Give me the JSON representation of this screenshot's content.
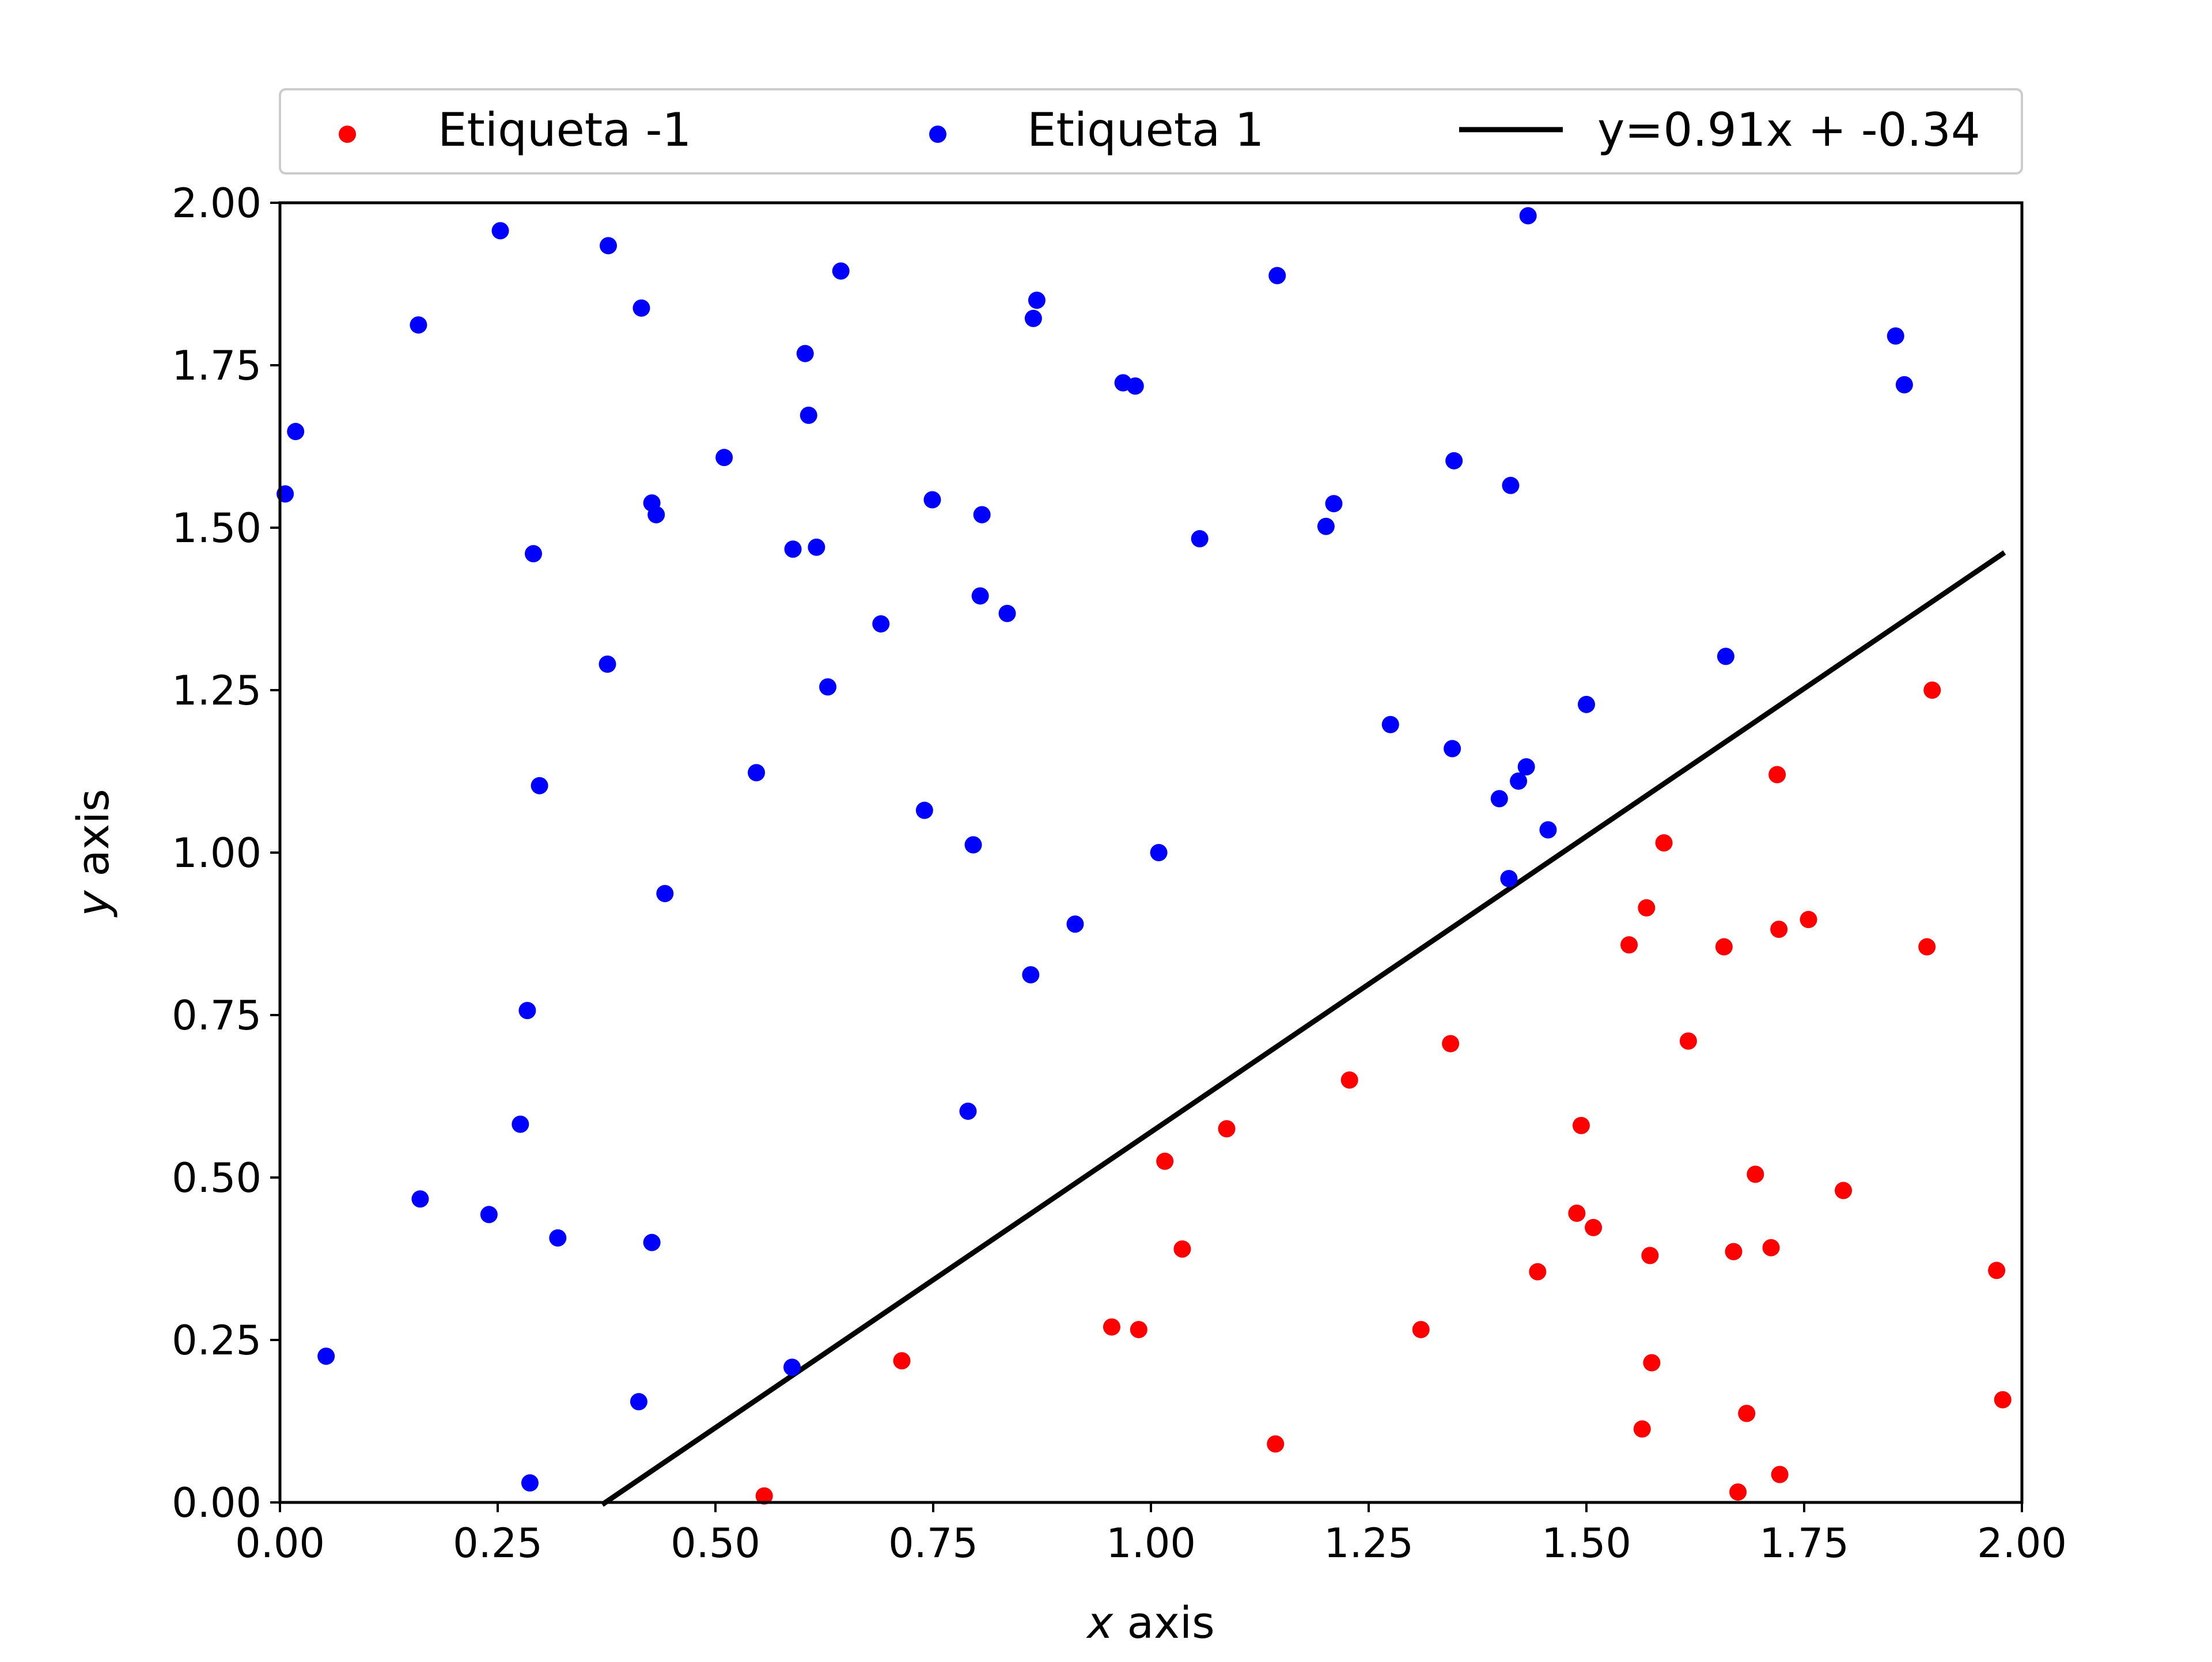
{
  "chart_data": {
    "type": "scatter",
    "title": "",
    "xlabel_var": "x",
    "xlabel_rest": " axis",
    "ylabel_var": "y",
    "ylabel_rest": " axis",
    "xlim": [
      0,
      2
    ],
    "ylim": [
      0,
      2
    ],
    "xticks": [
      "0.00",
      "0.25",
      "0.50",
      "0.75",
      "1.00",
      "1.25",
      "1.50",
      "1.75",
      "2.00"
    ],
    "yticks": [
      "0.00",
      "0.25",
      "0.50",
      "0.75",
      "1.00",
      "1.25",
      "1.50",
      "1.75",
      "2.00"
    ],
    "grid": false,
    "legend_position": "top, above plot",
    "series": [
      {
        "name": "Etiqueta -1",
        "color": "#ff0000",
        "points": [
          [
            0.556,
            0.01
          ],
          [
            0.714,
            0.218
          ],
          [
            0.955,
            0.27
          ],
          [
            0.986,
            0.266
          ],
          [
            1.016,
            0.525
          ],
          [
            1.036,
            0.39
          ],
          [
            1.087,
            0.575
          ],
          [
            1.143,
            0.09
          ],
          [
            1.228,
            0.65
          ],
          [
            1.31,
            0.266
          ],
          [
            1.344,
            0.706
          ],
          [
            1.444,
            0.355
          ],
          [
            1.489,
            0.445
          ],
          [
            1.494,
            0.58
          ],
          [
            1.508,
            0.423
          ],
          [
            1.549,
            0.858
          ],
          [
            1.564,
            0.113
          ],
          [
            1.569,
            0.915
          ],
          [
            1.573,
            0.38
          ],
          [
            1.575,
            0.215
          ],
          [
            1.589,
            1.015
          ],
          [
            1.617,
            0.71
          ],
          [
            1.658,
            0.855
          ],
          [
            1.669,
            0.386
          ],
          [
            1.674,
            0.016
          ],
          [
            1.684,
            0.137
          ],
          [
            1.694,
            0.505
          ],
          [
            1.712,
            0.392
          ],
          [
            1.719,
            1.12
          ],
          [
            1.721,
            0.882
          ],
          [
            1.722,
            0.043
          ],
          [
            1.755,
            0.897
          ],
          [
            1.795,
            0.48
          ],
          [
            1.891,
            0.855
          ],
          [
            1.897,
            1.25
          ],
          [
            1.971,
            0.357
          ],
          [
            1.978,
            0.158
          ]
        ]
      },
      {
        "name": "Etiqueta 1",
        "color": "#0000ff",
        "points": [
          [
            0.006,
            1.552
          ],
          [
            0.018,
            1.648
          ],
          [
            0.053,
            0.225
          ],
          [
            0.159,
            1.812
          ],
          [
            0.161,
            0.467
          ],
          [
            0.24,
            0.443
          ],
          [
            0.253,
            1.957
          ],
          [
            0.276,
            0.582
          ],
          [
            0.284,
            0.757
          ],
          [
            0.287,
            0.03
          ],
          [
            0.291,
            1.46
          ],
          [
            0.298,
            1.103
          ],
          [
            0.319,
            0.407
          ],
          [
            0.376,
            1.29
          ],
          [
            0.377,
            1.934
          ],
          [
            0.412,
            0.155
          ],
          [
            0.415,
            1.838
          ],
          [
            0.427,
            1.538
          ],
          [
            0.427,
            0.4
          ],
          [
            0.432,
            1.52
          ],
          [
            0.442,
            0.937
          ],
          [
            0.51,
            1.608
          ],
          [
            0.547,
            1.123
          ],
          [
            0.588,
            0.208
          ],
          [
            0.589,
            1.467
          ],
          [
            0.603,
            1.768
          ],
          [
            0.607,
            1.673
          ],
          [
            0.616,
            1.47
          ],
          [
            0.629,
            1.255
          ],
          [
            0.644,
            1.895
          ],
          [
            0.69,
            1.352
          ],
          [
            0.74,
            1.065
          ],
          [
            0.749,
            1.543
          ],
          [
            0.79,
            0.602
          ],
          [
            0.796,
            1.012
          ],
          [
            0.804,
            1.395
          ],
          [
            0.806,
            1.52
          ],
          [
            0.835,
            1.368
          ],
          [
            0.862,
            0.812
          ],
          [
            0.865,
            1.822
          ],
          [
            0.869,
            1.85
          ],
          [
            0.913,
            0.89
          ],
          [
            0.968,
            1.723
          ],
          [
            0.982,
            1.718
          ],
          [
            1.009,
            1.0
          ],
          [
            1.056,
            1.483
          ],
          [
            1.145,
            1.888
          ],
          [
            1.201,
            1.502
          ],
          [
            1.21,
            1.537
          ],
          [
            1.275,
            1.197
          ],
          [
            1.346,
            1.16
          ],
          [
            1.348,
            1.603
          ],
          [
            1.4,
            1.083
          ],
          [
            1.411,
            0.96
          ],
          [
            1.413,
            1.565
          ],
          [
            1.422,
            1.11
          ],
          [
            1.431,
            1.132
          ],
          [
            1.433,
            1.98
          ],
          [
            1.456,
            1.035
          ],
          [
            1.5,
            1.228
          ],
          [
            1.66,
            1.302
          ],
          [
            1.855,
            1.795
          ],
          [
            1.865,
            1.72
          ]
        ]
      }
    ],
    "line": {
      "name": "y=0.91x + -0.34",
      "color": "#000000",
      "slope": 0.91,
      "intercept": -0.34,
      "x_range": [
        0.37,
        1.98
      ]
    }
  }
}
